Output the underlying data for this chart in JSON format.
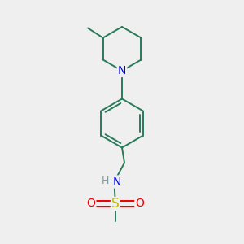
{
  "background_color": "#efefef",
  "bond_color": "#2a7a5a",
  "bond_width": 1.4,
  "N_color": "#0000ee",
  "O_color": "#ee0000",
  "S_color": "#bbbb00",
  "H_color": "#7a9a9a",
  "text_fontsize": 10,
  "figsize": [
    3.0,
    3.0
  ],
  "dpi": 100,
  "xlim": [
    0,
    10
  ],
  "ylim": [
    0,
    10
  ]
}
